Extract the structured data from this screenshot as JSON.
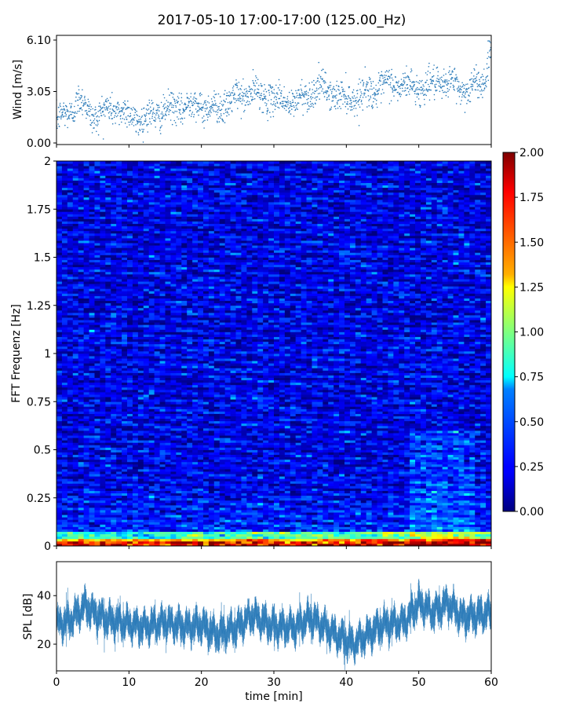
{
  "figure": {
    "title": "2017-05-10 17:00-17:00 (125.00_Hz)"
  },
  "chart_data": [
    {
      "type": "scatter",
      "panel": "wind",
      "ylabel": "Wind [m/s]",
      "xlabel": "",
      "xlim": [
        0,
        60
      ],
      "ylim": [
        0.0,
        6.1
      ],
      "yticks": [
        "0.00",
        "3.05",
        "6.10"
      ],
      "ytick_values": [
        0.0,
        3.05,
        6.1
      ],
      "color": "#2b7bb9",
      "trend_x": [
        0,
        2,
        3,
        5,
        8,
        10,
        12,
        14,
        16,
        19,
        22,
        25,
        27,
        30,
        33,
        36,
        38,
        40,
        43,
        46,
        50,
        54,
        57,
        60
      ],
      "trend_y": [
        1.3,
        1.9,
        2.6,
        1.6,
        2.1,
        1.6,
        1.4,
        1.8,
        2.0,
        2.3,
        2.0,
        2.7,
        3.0,
        2.6,
        2.4,
        3.3,
        3.0,
        2.6,
        3.0,
        3.5,
        3.3,
        3.6,
        3.1,
        4.2
      ]
    },
    {
      "type": "heatmap",
      "panel": "spectrogram",
      "ylabel": "FFT Frequenz [Hz]",
      "xlabel": "",
      "xlim": [
        0,
        60
      ],
      "ylim": [
        0,
        2
      ],
      "yticks": [
        "0",
        "0.25",
        "0.5",
        "0.75",
        "1",
        "1.25",
        "1.5",
        "1.75",
        "2"
      ],
      "ytick_values": [
        0,
        0.25,
        0.5,
        0.75,
        1,
        1.25,
        1.5,
        1.75,
        2
      ],
      "colorbar": {
        "range": [
          0.0,
          2.0
        ],
        "ticks": [
          "0.00",
          "0.25",
          "0.50",
          "0.75",
          "1.00",
          "1.25",
          "1.50",
          "1.75",
          "2.00"
        ],
        "tick_values": [
          0,
          0.25,
          0.5,
          0.75,
          1.0,
          1.25,
          1.5,
          1.75,
          2.0
        ],
        "colormap": "jet"
      }
    },
    {
      "type": "line",
      "panel": "spl",
      "ylabel": "SPL [dB]",
      "xlabel": "time [min]",
      "xlim": [
        0,
        60
      ],
      "ylim": [
        9,
        54
      ],
      "yticks": [
        "20",
        "40"
      ],
      "ytick_values": [
        20,
        40
      ],
      "xticks": [
        "0",
        "10",
        "20",
        "30",
        "40",
        "50",
        "60"
      ],
      "xtick_values": [
        0,
        10,
        20,
        30,
        40,
        50,
        60
      ],
      "color": "#2b7bb9",
      "x": [
        0,
        2,
        4,
        5,
        7,
        9,
        12,
        15,
        18,
        20,
        22,
        25,
        27,
        30,
        33,
        35,
        37,
        39,
        41,
        43,
        45,
        48,
        50,
        52,
        54,
        56,
        58,
        60
      ],
      "y": [
        28,
        30,
        36,
        33,
        30,
        29,
        27,
        29,
        27,
        28,
        24,
        27,
        32,
        27,
        27,
        31,
        27,
        23,
        20,
        24,
        28,
        29,
        37,
        33,
        37,
        31,
        32,
        33
      ]
    }
  ]
}
